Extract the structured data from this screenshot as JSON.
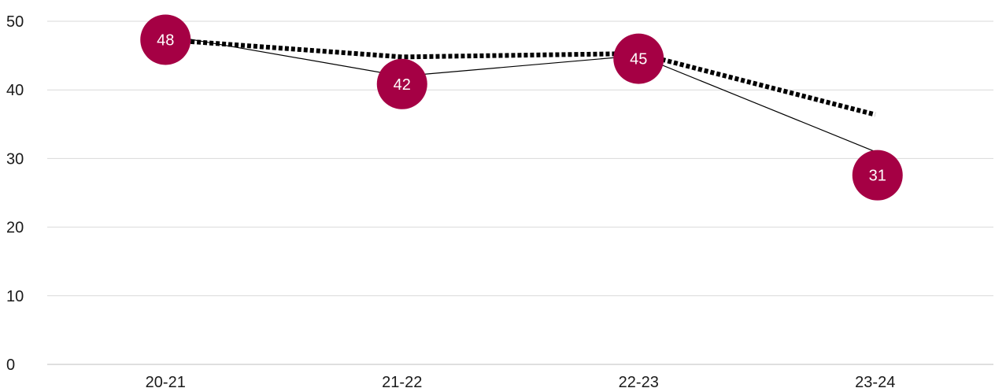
{
  "chart_data": {
    "type": "line",
    "title": "",
    "xlabel": "",
    "ylabel": "",
    "categories": [
      "20-21",
      "21-22",
      "22-23",
      "23-24"
    ],
    "ylim": [
      0,
      50
    ],
    "yticks": [
      0,
      10,
      20,
      30,
      40,
      50
    ],
    "grid": true,
    "legend": "none",
    "series": [
      {
        "values": [
          48,
          42,
          45,
          31
        ],
        "style": "solid",
        "color": "#000000",
        "marker_color": "#a50044",
        "data_labels": [
          "48",
          "42",
          "45",
          "31"
        ]
      },
      {
        "values": [
          47.3,
          44.8,
          45.3,
          36.4
        ],
        "style": "dotted",
        "color": "#000000"
      }
    ]
  }
}
